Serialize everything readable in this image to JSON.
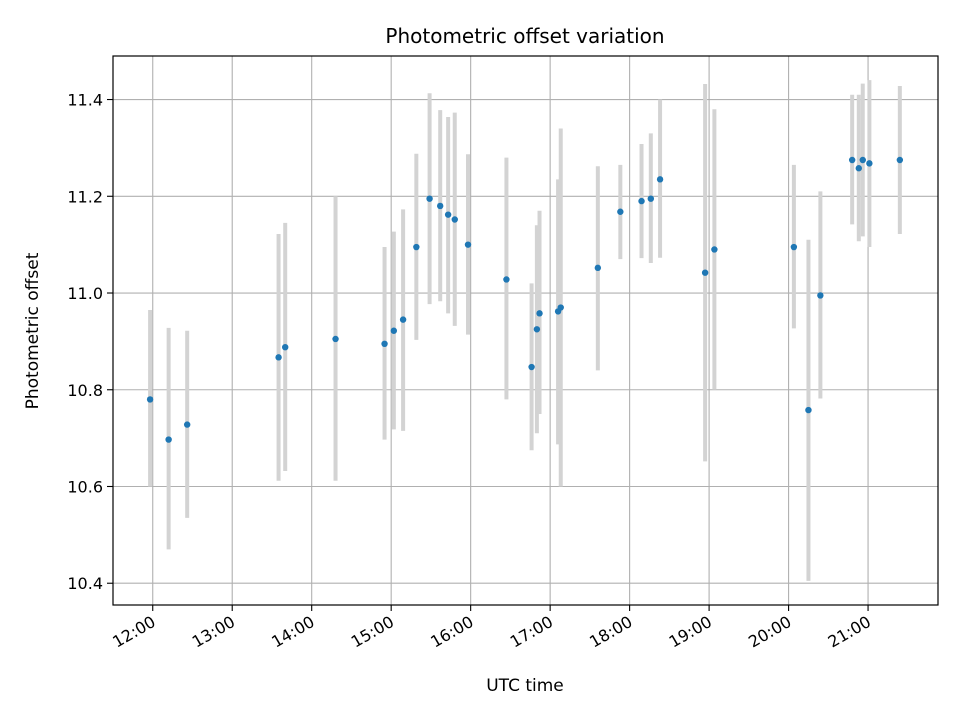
{
  "chart_data": {
    "type": "scatter",
    "title": "Photometric offset variation",
    "xlabel": "UTC time",
    "ylabel": "Photometric offset",
    "x_tick_labels": [
      "12:00",
      "13:00",
      "14:00",
      "15:00",
      "16:00",
      "17:00",
      "18:00",
      "19:00",
      "20:00",
      "21:00"
    ],
    "x_ticks_hours": [
      12,
      13,
      14,
      15,
      16,
      17,
      18,
      19,
      20,
      21
    ],
    "xlim_hours": [
      11.5,
      21.88
    ],
    "y_tick_labels": [
      "10.4",
      "10.6",
      "10.8",
      "11.0",
      "11.2",
      "11.4"
    ],
    "y_ticks": [
      10.4,
      10.6,
      10.8,
      11.0,
      11.2,
      11.4
    ],
    "ylim": [
      10.355,
      11.49
    ],
    "grid": true,
    "colors": {
      "point": "#1f77b4",
      "errorbar": "#d3d3d3",
      "grid": "#b0b0b0"
    },
    "points": [
      {
        "t": "11:58",
        "y": 10.78,
        "lo": 10.6,
        "hi": 10.965
      },
      {
        "t": "12:12",
        "y": 10.697,
        "lo": 10.47,
        "hi": 10.928
      },
      {
        "t": "12:26",
        "y": 10.728,
        "lo": 10.535,
        "hi": 10.922
      },
      {
        "t": "13:35",
        "y": 10.867,
        "lo": 10.612,
        "hi": 11.122
      },
      {
        "t": "13:40",
        "y": 10.888,
        "lo": 10.632,
        "hi": 11.145
      },
      {
        "t": "14:18",
        "y": 10.905,
        "lo": 10.612,
        "hi": 11.2
      },
      {
        "t": "14:55",
        "y": 10.895,
        "lo": 10.697,
        "hi": 11.095
      },
      {
        "t": "15:02",
        "y": 10.922,
        "lo": 10.718,
        "hi": 11.127
      },
      {
        "t": "15:09",
        "y": 10.945,
        "lo": 10.715,
        "hi": 11.173
      },
      {
        "t": "15:19",
        "y": 11.095,
        "lo": 10.903,
        "hi": 11.288
      },
      {
        "t": "15:29",
        "y": 11.195,
        "lo": 10.977,
        "hi": 11.413
      },
      {
        "t": "15:37",
        "y": 11.18,
        "lo": 10.983,
        "hi": 11.378
      },
      {
        "t": "15:43",
        "y": 11.162,
        "lo": 10.958,
        "hi": 11.364
      },
      {
        "t": "15:48",
        "y": 11.152,
        "lo": 10.932,
        "hi": 11.373
      },
      {
        "t": "15:58",
        "y": 11.1,
        "lo": 10.914,
        "hi": 11.287
      },
      {
        "t": "16:27",
        "y": 11.028,
        "lo": 10.78,
        "hi": 11.28
      },
      {
        "t": "16:46",
        "y": 10.847,
        "lo": 10.675,
        "hi": 11.02
      },
      {
        "t": "16:50",
        "y": 10.925,
        "lo": 10.71,
        "hi": 11.14
      },
      {
        "t": "16:52",
        "y": 10.958,
        "lo": 10.75,
        "hi": 11.17
      },
      {
        "t": "17:06",
        "y": 10.962,
        "lo": 10.687,
        "hi": 11.235
      },
      {
        "t": "17:08",
        "y": 10.97,
        "lo": 10.6,
        "hi": 11.34
      },
      {
        "t": "17:36",
        "y": 11.052,
        "lo": 10.84,
        "hi": 11.262
      },
      {
        "t": "17:53",
        "y": 11.168,
        "lo": 11.07,
        "hi": 11.265
      },
      {
        "t": "18:09",
        "y": 11.19,
        "lo": 11.072,
        "hi": 11.308
      },
      {
        "t": "18:16",
        "y": 11.195,
        "lo": 11.062,
        "hi": 11.33
      },
      {
        "t": "18:23",
        "y": 11.235,
        "lo": 11.073,
        "hi": 11.4
      },
      {
        "t": "18:57",
        "y": 11.042,
        "lo": 10.652,
        "hi": 11.432
      },
      {
        "t": "19:04",
        "y": 11.09,
        "lo": 10.8,
        "hi": 11.38
      },
      {
        "t": "20:04",
        "y": 11.095,
        "lo": 10.927,
        "hi": 11.265
      },
      {
        "t": "20:15",
        "y": 10.758,
        "lo": 10.405,
        "hi": 11.11
      },
      {
        "t": "20:24",
        "y": 10.995,
        "lo": 10.782,
        "hi": 11.21
      },
      {
        "t": "20:48",
        "y": 11.275,
        "lo": 11.142,
        "hi": 11.41
      },
      {
        "t": "20:53",
        "y": 11.258,
        "lo": 11.107,
        "hi": 11.41
      },
      {
        "t": "20:56",
        "y": 11.275,
        "lo": 11.117,
        "hi": 11.433
      },
      {
        "t": "21:01",
        "y": 11.268,
        "lo": 11.095,
        "hi": 11.44
      },
      {
        "t": "21:24",
        "y": 11.275,
        "lo": 11.122,
        "hi": 11.428
      }
    ]
  }
}
